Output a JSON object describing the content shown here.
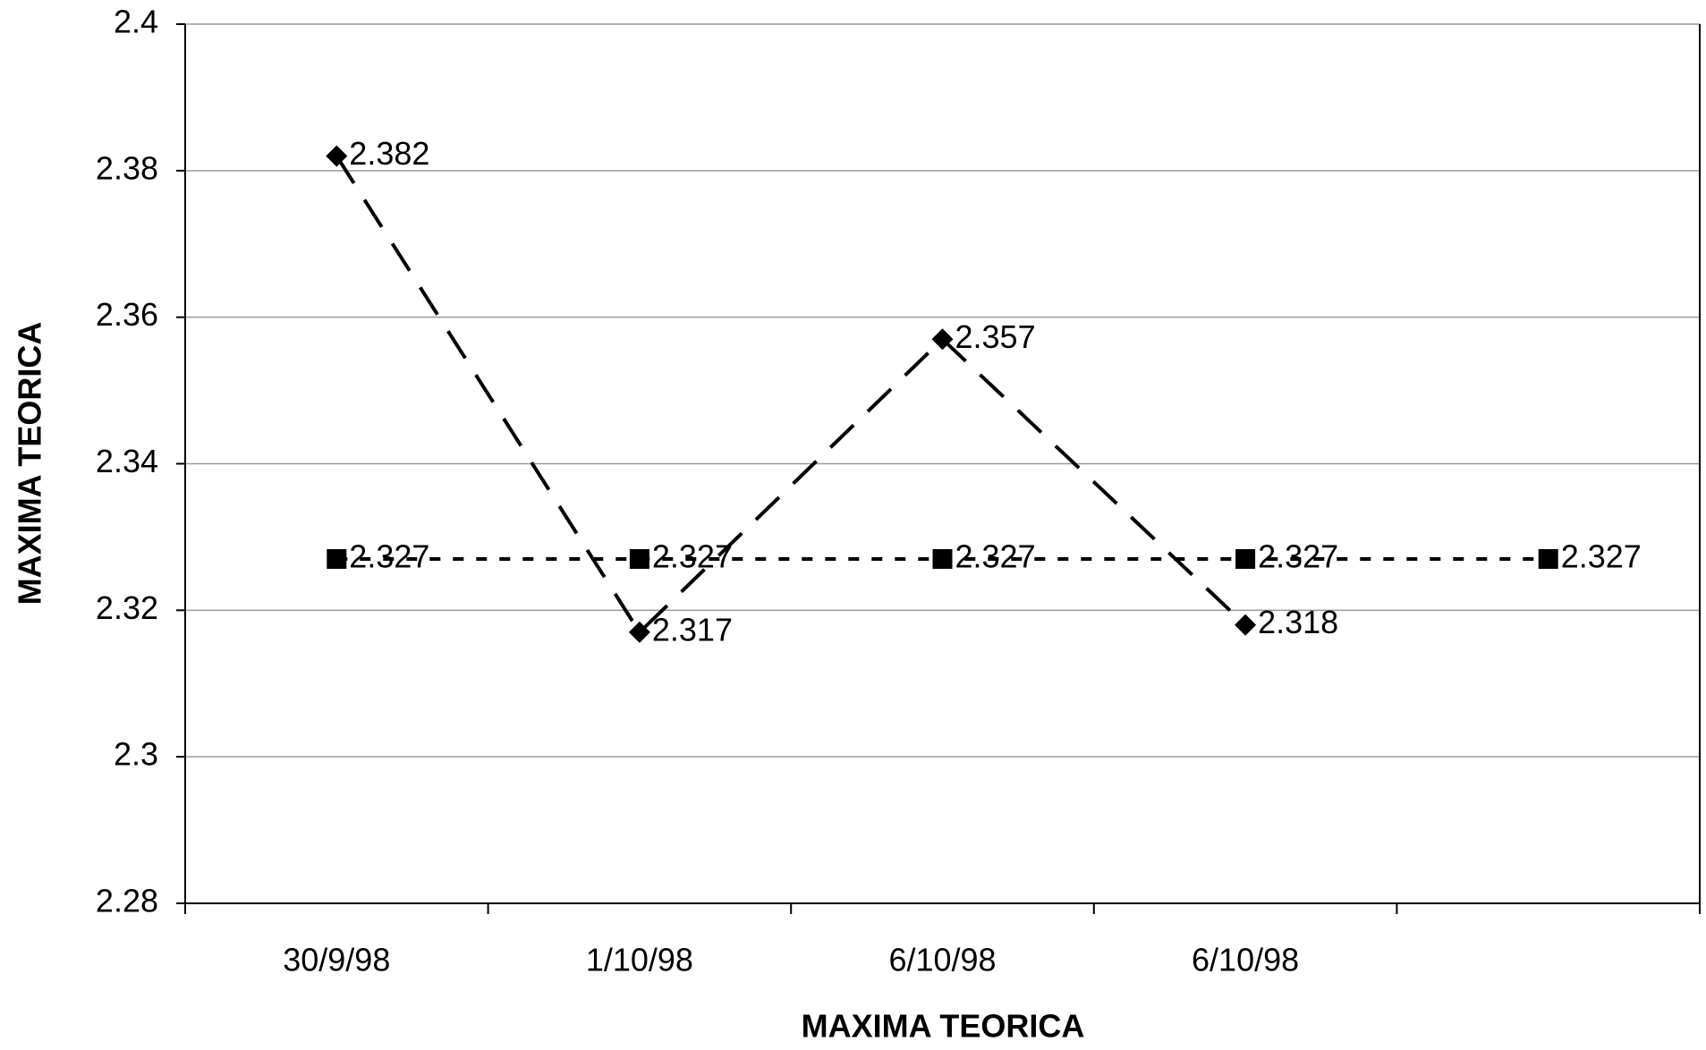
{
  "chart_data": {
    "type": "line",
    "categories": [
      "30/9/98",
      "1/10/98",
      "6/10/98",
      "6/10/98",
      null
    ],
    "series": [
      {
        "color": "#000000",
        "dash": "dashed",
        "marker": "diamond",
        "values": [
          2.382,
          2.317,
          2.357,
          2.318,
          null
        ]
      },
      {
        "color": "#000000",
        "dash": "dotted",
        "marker": "square",
        "values": [
          2.327,
          2.327,
          2.327,
          2.327,
          2.327
        ]
      }
    ],
    "ylim": [
      2.28,
      2.4
    ],
    "yticks": [
      2.28,
      2.3,
      2.32,
      2.34,
      2.36,
      2.38,
      2.4
    ],
    "grid": true,
    "data_labels": true,
    "xlabel": "MAXIMA TEORICA",
    "ylabel": "MAXIMA TEORICA"
  }
}
